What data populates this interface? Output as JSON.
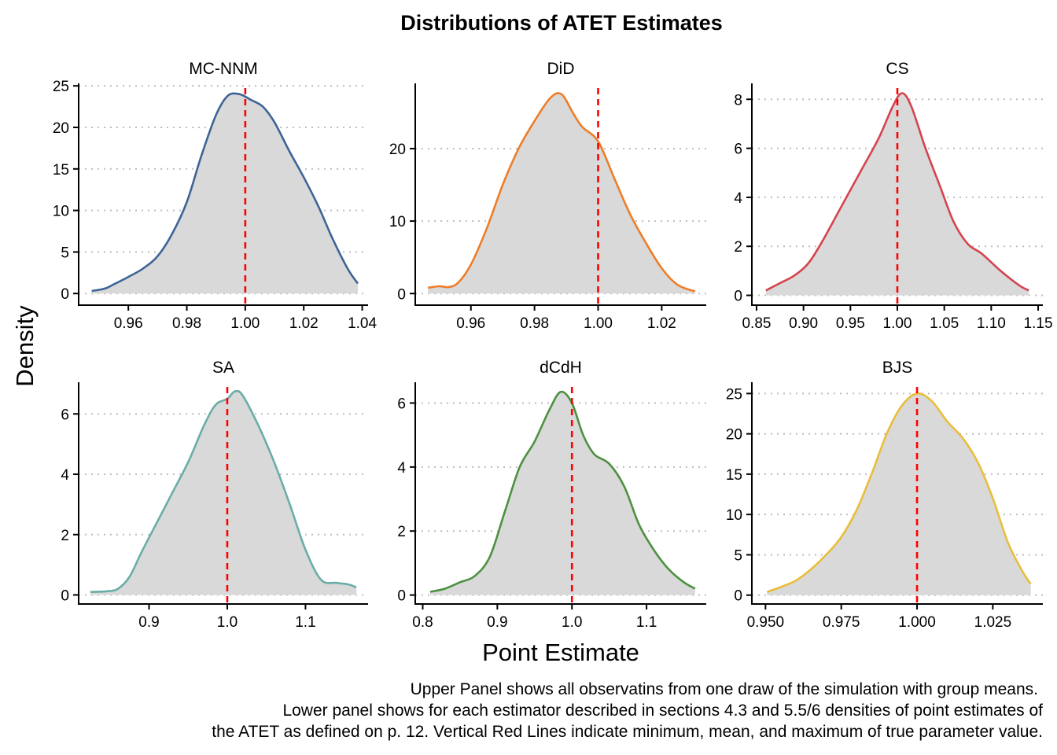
{
  "figure": {
    "title": "Distributions of ATET Estimates",
    "xlabel": "Point Estimate",
    "ylabel": "Density",
    "caption_lines": [
      "Upper Panel shows all observatins from one draw of the simulation with group means.",
      "Lower panel shows for each estimator described in sections 4.3 and 5.5/6 densities of point estimates of",
      "the ATET as defined on p. 12. Vertical Red Lines indicate minimum, mean, and maximum of true parameter value."
    ],
    "colors": {
      "fill": "#d9d9d9",
      "ref_line": "#ff0000",
      "grid": "#bdbdbd"
    }
  },
  "chart_data": [
    {
      "type": "area",
      "panel": "MC-NNM",
      "color": "#3e6496",
      "ref_line_x": 1.0,
      "xlim": [
        0.943,
        1.042
      ],
      "ylim": [
        -1.4,
        25.3
      ],
      "x_ticks": [
        0.96,
        0.98,
        1.0,
        1.02,
        1.04
      ],
      "x_tick_labels": [
        "0.96",
        "0.98",
        "1.00",
        "1.02",
        "1.04"
      ],
      "y_ticks": [
        0,
        5,
        10,
        15,
        20,
        25
      ],
      "y_tick_labels": [
        "0",
        "5",
        "10",
        "15",
        "20",
        "25"
      ],
      "x": [
        0.9475,
        0.952,
        0.955,
        0.96,
        0.965,
        0.97,
        0.975,
        0.98,
        0.985,
        0.99,
        0.994,
        0.998,
        1.002,
        1.006,
        1.01,
        1.015,
        1.02,
        1.025,
        1.03,
        1.035,
        1.0385
      ],
      "y": [
        0.3,
        0.6,
        1.1,
        2.0,
        3.0,
        4.5,
        7.2,
        11.0,
        16.6,
        21.5,
        23.8,
        24.0,
        23.3,
        22.5,
        20.6,
        17.2,
        14.0,
        10.5,
        6.5,
        3.0,
        1.2
      ]
    },
    {
      "type": "area",
      "panel": "DiD",
      "color": "#ee7d27",
      "ref_line_x": 1.0,
      "xlim": [
        0.9425,
        1.034
      ],
      "ylim": [
        -1.6,
        29
      ],
      "x_ticks": [
        0.96,
        0.98,
        1.0,
        1.02
      ],
      "x_tick_labels": [
        "0.96",
        "0.98",
        "1.00",
        "1.02"
      ],
      "y_ticks": [
        0,
        10,
        20
      ],
      "y_tick_labels": [
        "0",
        "10",
        "20"
      ],
      "x": [
        0.9465,
        0.95,
        0.953,
        0.956,
        0.96,
        0.965,
        0.97,
        0.975,
        0.98,
        0.985,
        0.9885,
        0.992,
        0.995,
        1.0,
        1.005,
        1.01,
        1.015,
        1.02,
        1.025,
        1.0305
      ],
      "y": [
        0.8,
        1.0,
        0.9,
        1.5,
        4.0,
        9.0,
        15.0,
        20.0,
        23.8,
        27.0,
        27.5,
        25.0,
        23.0,
        21.0,
        16.0,
        11.0,
        7.0,
        3.5,
        1.2,
        0.3
      ]
    },
    {
      "type": "area",
      "panel": "CS",
      "color": "#d5444e",
      "ref_line_x": 1.0,
      "xlim": [
        0.845,
        1.155
      ],
      "ylim": [
        -0.4,
        8.65
      ],
      "x_ticks": [
        0.85,
        0.9,
        0.95,
        1.0,
        1.05,
        1.1,
        1.15
      ],
      "x_tick_labels": [
        "0.85",
        "0.90",
        "0.95",
        "1.00",
        "1.05",
        "1.10",
        "1.15"
      ],
      "y_ticks": [
        0,
        2,
        4,
        6,
        8
      ],
      "y_tick_labels": [
        "0",
        "2",
        "4",
        "6",
        "8"
      ],
      "x": [
        0.86,
        0.875,
        0.89,
        0.905,
        0.92,
        0.94,
        0.96,
        0.98,
        0.995,
        1.005,
        1.015,
        1.03,
        1.045,
        1.06,
        1.075,
        1.09,
        1.11,
        1.13,
        1.14
      ],
      "y": [
        0.2,
        0.5,
        0.8,
        1.3,
        2.2,
        3.6,
        5.0,
        6.4,
        7.7,
        8.25,
        7.7,
        6.0,
        4.5,
        3.0,
        2.1,
        1.7,
        1.0,
        0.4,
        0.2
      ]
    },
    {
      "type": "area",
      "panel": "SA",
      "color": "#6aada7",
      "ref_line_x": 1.0,
      "xlim": [
        0.81,
        1.18
      ],
      "ylim": [
        -0.3,
        7.05
      ],
      "x_ticks": [
        0.9,
        1.0,
        1.1
      ],
      "x_tick_labels": [
        "0.9",
        "1.0",
        "1.1"
      ],
      "y_ticks": [
        0,
        2,
        4,
        6
      ],
      "y_tick_labels": [
        "0",
        "2",
        "4",
        "6"
      ],
      "x": [
        0.825,
        0.845,
        0.86,
        0.875,
        0.89,
        0.91,
        0.93,
        0.95,
        0.97,
        0.985,
        1.0,
        1.01,
        1.02,
        1.04,
        1.06,
        1.08,
        1.1,
        1.12,
        1.14,
        1.155,
        1.165
      ],
      "y": [
        0.1,
        0.12,
        0.2,
        0.6,
        1.4,
        2.4,
        3.4,
        4.4,
        5.6,
        6.3,
        6.5,
        6.75,
        6.6,
        5.6,
        4.4,
        3.0,
        1.5,
        0.5,
        0.4,
        0.35,
        0.25
      ]
    },
    {
      "type": "area",
      "panel": "dCdH",
      "color": "#4d9140",
      "ref_line_x": 1.0,
      "xlim": [
        0.79,
        1.18
      ],
      "ylim": [
        -0.28,
        6.65
      ],
      "x_ticks": [
        0.8,
        0.9,
        1.0,
        1.1
      ],
      "x_tick_labels": [
        "0.8",
        "0.9",
        "1.0",
        "1.1"
      ],
      "y_ticks": [
        0,
        2,
        4,
        6
      ],
      "y_tick_labels": [
        "0",
        "2",
        "4",
        "6"
      ],
      "x": [
        0.81,
        0.83,
        0.85,
        0.87,
        0.89,
        0.91,
        0.93,
        0.95,
        0.97,
        0.985,
        1.0,
        1.015,
        1.03,
        1.05,
        1.07,
        1.09,
        1.11,
        1.13,
        1.15,
        1.165
      ],
      "y": [
        0.1,
        0.2,
        0.4,
        0.6,
        1.2,
        2.6,
        4.0,
        4.8,
        5.8,
        6.35,
        6.0,
        5.0,
        4.4,
        4.1,
        3.4,
        2.2,
        1.4,
        0.8,
        0.4,
        0.2
      ]
    },
    {
      "type": "area",
      "panel": "BJS",
      "color": "#e9bd3c",
      "ref_line_x": 1.0,
      "xlim": [
        0.9455,
        1.0415
      ],
      "ylim": [
        -1.1,
        26.4
      ],
      "x_ticks": [
        0.95,
        0.975,
        1.0,
        1.025
      ],
      "x_tick_labels": [
        "0.950",
        "0.975",
        "1.000",
        "1.025"
      ],
      "y_ticks": [
        0,
        5,
        10,
        15,
        20,
        25
      ],
      "y_tick_labels": [
        "0",
        "5",
        "10",
        "15",
        "20",
        "25"
      ],
      "x": [
        0.9505,
        0.955,
        0.96,
        0.965,
        0.97,
        0.975,
        0.98,
        0.985,
        0.99,
        0.995,
        1.0,
        1.005,
        1.01,
        1.015,
        1.02,
        1.025,
        1.03,
        1.035,
        1.0375
      ],
      "y": [
        0.4,
        1.0,
        1.8,
        3.2,
        5.0,
        7.2,
        10.5,
        15.0,
        20.0,
        23.5,
        25.0,
        24.0,
        21.5,
        19.5,
        16.5,
        12.0,
        6.5,
        2.8,
        1.4
      ]
    }
  ]
}
